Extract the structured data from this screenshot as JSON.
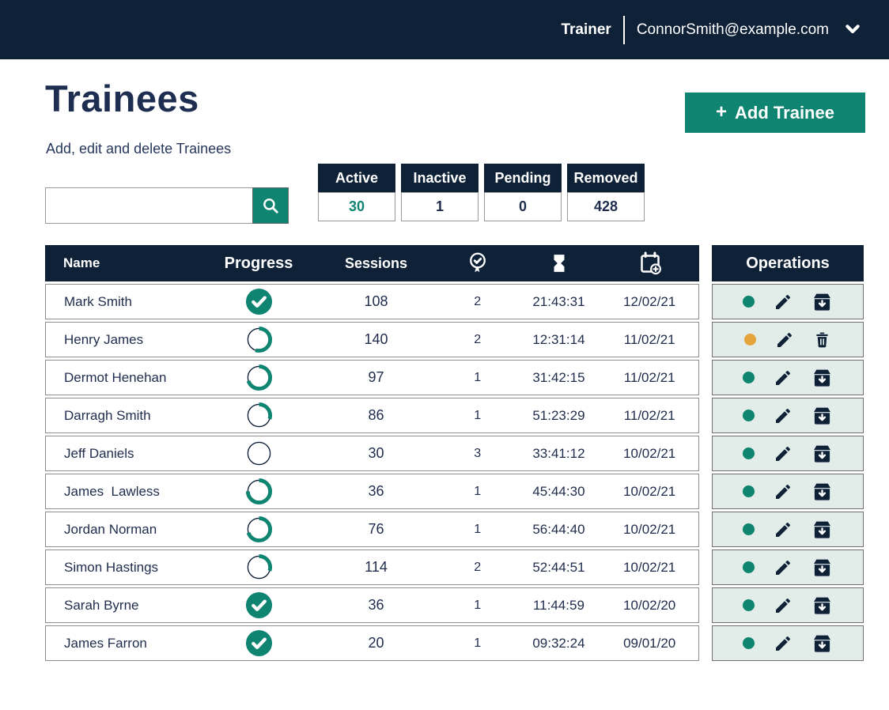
{
  "colors": {
    "navy": "#0F2137",
    "teal": "#0E8471",
    "amber": "#E5A33C",
    "ops_row_bg": "#E2EDE9",
    "text_navy": "#1F2C4C"
  },
  "navbar": {
    "role": "Trainer",
    "email": "ConnorSmith@example.com"
  },
  "page": {
    "title": "Trainees",
    "subtitle": "Add, edit and delete Trainees"
  },
  "toolbar": {
    "add_trainee": {
      "icon": "+",
      "label": "Add Trainee"
    },
    "search": {
      "value": "",
      "placeholder": ""
    }
  },
  "status_tabs": [
    {
      "label": "Active",
      "count": "30",
      "accent": true
    },
    {
      "label": "Inactive",
      "count": "1",
      "accent": false
    },
    {
      "label": "Pending",
      "count": "0",
      "accent": false
    },
    {
      "label": "Removed",
      "count": "428",
      "accent": false
    }
  ],
  "table": {
    "headers": {
      "name": "Name",
      "progress": "Progress",
      "sessions": "Sessions"
    },
    "icon_headers": [
      "award-badge-icon",
      "hourglass-icon",
      "calendar-add-icon"
    ],
    "operations_header": "Operations"
  },
  "trainees": [
    {
      "name": "Mark Smith",
      "progress_pct": 100,
      "sessions": "108",
      "certs": "2",
      "time": "21:43:31",
      "date": "12/02/21",
      "status_dot": "teal",
      "action": "archive"
    },
    {
      "name": "Henry James",
      "progress_pct": 55,
      "sessions": "140",
      "certs": "2",
      "time": "12:31:14",
      "date": "11/02/21",
      "status_dot": "amber",
      "action": "delete"
    },
    {
      "name": "Dermot Henehan",
      "progress_pct": 70,
      "sessions": "97",
      "certs": "1",
      "time": "31:42:15",
      "date": "11/02/21",
      "status_dot": "teal",
      "action": "archive"
    },
    {
      "name": "Darragh Smith",
      "progress_pct": 30,
      "sessions": "86",
      "certs": "1",
      "time": "51:23:29",
      "date": "11/02/21",
      "status_dot": "teal",
      "action": "archive"
    },
    {
      "name": "Jeff Daniels",
      "progress_pct": 0,
      "sessions": "30",
      "certs": "3",
      "time": "33:41:12",
      "date": "10/02/21",
      "status_dot": "teal",
      "action": "archive"
    },
    {
      "name": "James  Lawless",
      "progress_pct": 75,
      "sessions": "36",
      "certs": "1",
      "time": "45:44:30",
      "date": "10/02/21",
      "status_dot": "teal",
      "action": "archive"
    },
    {
      "name": "Jordan Norman",
      "progress_pct": 70,
      "sessions": "76",
      "certs": "1",
      "time": "56:44:40",
      "date": "10/02/21",
      "status_dot": "teal",
      "action": "archive"
    },
    {
      "name": "Simon Hastings",
      "progress_pct": 30,
      "sessions": "114",
      "certs": "2",
      "time": "52:44:51",
      "date": "10/02/21",
      "status_dot": "teal",
      "action": "archive"
    },
    {
      "name": "Sarah Byrne",
      "progress_pct": 100,
      "sessions": "36",
      "certs": "1",
      "time": "11:44:59",
      "date": "10/02/20",
      "status_dot": "teal",
      "action": "archive"
    },
    {
      "name": "James Farron",
      "progress_pct": 100,
      "sessions": "20",
      "certs": "1",
      "time": "09:32:24",
      "date": "09/01/20",
      "status_dot": "teal",
      "action": "archive"
    }
  ]
}
